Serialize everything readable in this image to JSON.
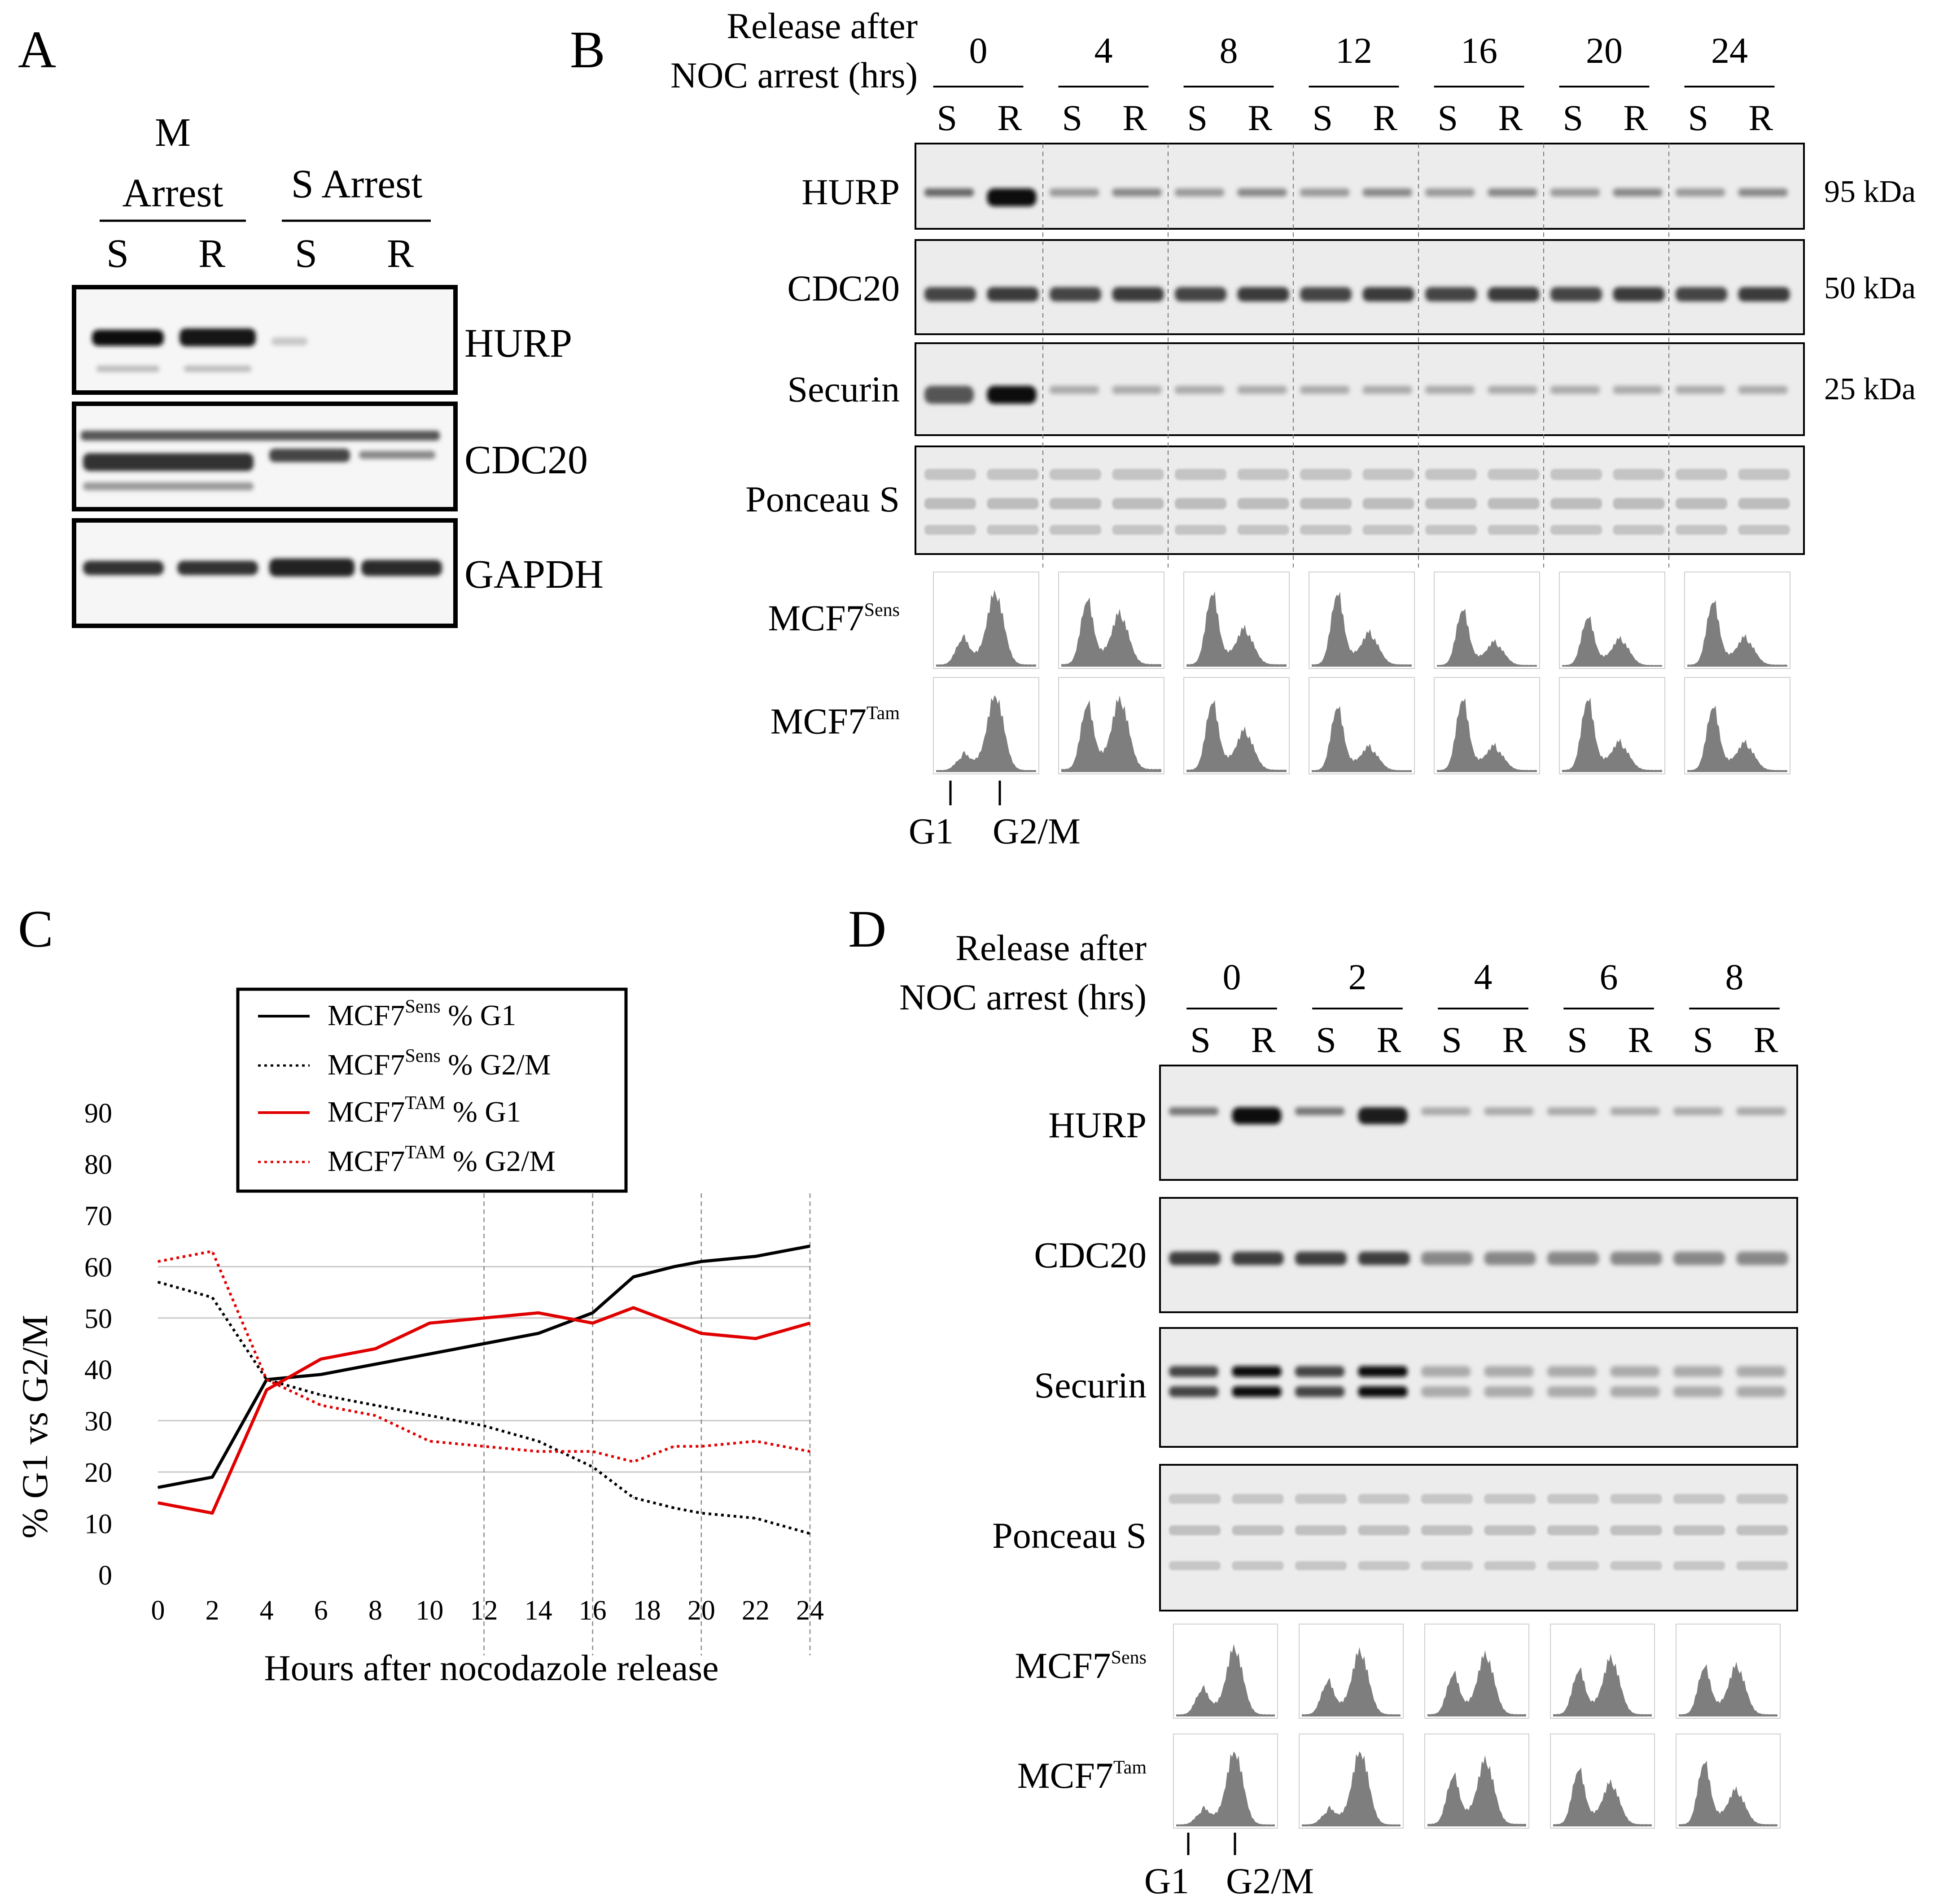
{
  "panelA": {
    "letter": "A",
    "groups": [
      {
        "line1": "M",
        "line2": "Arrest"
      },
      {
        "line1": "S Arrest"
      }
    ],
    "lanes": [
      "S",
      "R",
      "S",
      "R"
    ],
    "blots": [
      "HURP",
      "CDC20",
      "GAPDH"
    ]
  },
  "panelB": {
    "letter": "B",
    "header_line1": "Release after",
    "header_line2": "NOC arrest (hrs)",
    "timepoints": [
      "0",
      "4",
      "8",
      "12",
      "16",
      "20",
      "24"
    ],
    "lane_labels": [
      "S",
      "R"
    ],
    "blots": [
      {
        "name": "HURP",
        "kda": "95 kDa"
      },
      {
        "name": "CDC20",
        "kda": "50 kDa"
      },
      {
        "name": "Securin",
        "kda": "25 kDa"
      },
      {
        "name": "Ponceau S",
        "kda": ""
      }
    ],
    "facs_rows": [
      {
        "base": "MCF7",
        "sup": "Sens"
      },
      {
        "base": "MCF7",
        "sup": "Tam"
      }
    ],
    "phase_markers": [
      "G1",
      "G2/M"
    ]
  },
  "panelC": {
    "letter": "C",
    "chart_data": {
      "type": "line",
      "title": "",
      "xlabel": "Hours after nocodazole release",
      "ylabel": "% G1 vs G2/M",
      "x_ticks": [
        "0",
        "2",
        "4",
        "6",
        "8",
        "10",
        "12",
        "14",
        "16",
        "18",
        "20",
        "22",
        "24"
      ],
      "y_ticks": [
        "0",
        "10",
        "20",
        "30",
        "40",
        "50",
        "60",
        "70",
        "80",
        "90"
      ],
      "ylim": [
        0,
        90
      ],
      "xlim": [
        0,
        24
      ],
      "legend": [
        {
          "base": "MCF7",
          "sup": "Sens",
          "suffix": " % G1"
        },
        {
          "base": "MCF7",
          "sup": "Sens",
          "suffix": " % G2/M"
        },
        {
          "base": "MCF7",
          "sup": "TAM",
          "suffix": " % G1"
        },
        {
          "base": "MCF7",
          "sup": "TAM",
          "suffix": " % G2/M"
        }
      ],
      "series": [
        {
          "name": "MCF7Sens % G1",
          "color": "#000000",
          "style": "solid",
          "x": [
            0,
            2,
            4,
            6,
            8,
            10,
            12,
            14,
            16,
            17.5,
            19,
            20,
            22,
            24
          ],
          "y": [
            17,
            19,
            38,
            39,
            41,
            43,
            45,
            47,
            51,
            58,
            60,
            61,
            62,
            64
          ]
        },
        {
          "name": "MCF7Sens % G2/M",
          "color": "#000000",
          "style": "dotted",
          "x": [
            0,
            2,
            4,
            6,
            8,
            10,
            12,
            14,
            16,
            17.5,
            19,
            20,
            22,
            24
          ],
          "y": [
            57,
            54,
            38,
            35,
            33,
            31,
            29,
            26,
            21,
            15,
            13,
            12,
            11,
            8
          ]
        },
        {
          "name": "MCF7TAM % G1",
          "color": "#e00000",
          "style": "solid",
          "x": [
            0,
            2,
            4,
            6,
            8,
            10,
            12,
            14,
            16,
            17.5,
            19,
            20,
            22,
            24
          ],
          "y": [
            14,
            12,
            36,
            42,
            44,
            49,
            50,
            51,
            49,
            52,
            49,
            47,
            46,
            49
          ]
        },
        {
          "name": "MCF7TAM % G2/M",
          "color": "#e00000",
          "style": "dotted",
          "x": [
            0,
            2,
            4,
            6,
            8,
            10,
            12,
            14,
            16,
            17.5,
            19,
            20,
            22,
            24
          ],
          "y": [
            61,
            63,
            38,
            33,
            31,
            26,
            25,
            24,
            24,
            22,
            25,
            25,
            26,
            24
          ]
        }
      ]
    }
  },
  "panelD": {
    "letter": "D",
    "header_line1": "Release after",
    "header_line2": "NOC arrest (hrs)",
    "timepoints": [
      "0",
      "2",
      "4",
      "6",
      "8"
    ],
    "lane_labels": [
      "S",
      "R"
    ],
    "blots": [
      "HURP",
      "CDC20",
      "Securin",
      "Ponceau S"
    ],
    "facs_rows": [
      {
        "base": "MCF7",
        "sup": "Sens"
      },
      {
        "base": "MCF7",
        "sup": "Tam"
      }
    ],
    "phase_markers": [
      "G1",
      "G2/M"
    ]
  }
}
